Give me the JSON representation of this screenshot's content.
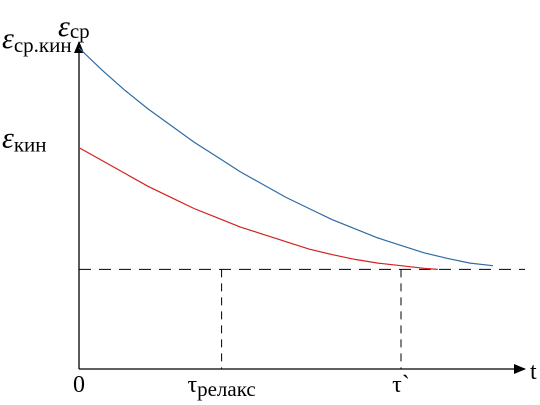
{
  "chart_data": {
    "type": "line",
    "title": "",
    "xlabel": "t",
    "ylabel": {
      "symbol": "ε",
      "subscript": "ср"
    },
    "xlim": [
      0,
      1.0
    ],
    "ylim": [
      0,
      1.0
    ],
    "x_ticks": [
      {
        "value": 0.0,
        "label": "0",
        "subscript": ""
      },
      {
        "value": 0.31,
        "label": "τ",
        "subscript": "релакс"
      },
      {
        "value": 0.7,
        "label": "τ`",
        "subscript": ""
      }
    ],
    "y_labels": [
      {
        "value": 0.87,
        "symbol": "ε",
        "subscript": "ср.кин"
      },
      {
        "value": 0.6,
        "symbol": "ε",
        "subscript": "кин"
      }
    ],
    "asymptote": {
      "y": 0.27,
      "style": "dashed"
    },
    "series": [
      {
        "color": "#2f6aa6",
        "x": [
          0.0,
          0.05,
          0.1,
          0.15,
          0.2,
          0.25,
          0.3,
          0.35,
          0.4,
          0.45,
          0.5,
          0.55,
          0.6,
          0.65,
          0.7,
          0.75,
          0.8,
          0.85,
          0.9
        ],
        "y": [
          0.87,
          0.81,
          0.755,
          0.705,
          0.66,
          0.615,
          0.575,
          0.535,
          0.5,
          0.465,
          0.435,
          0.405,
          0.38,
          0.355,
          0.335,
          0.315,
          0.3,
          0.287,
          0.28
        ]
      },
      {
        "color": "#d42020",
        "x": [
          0.0,
          0.05,
          0.1,
          0.15,
          0.2,
          0.25,
          0.3,
          0.35,
          0.4,
          0.45,
          0.5,
          0.55,
          0.6,
          0.65,
          0.7,
          0.75,
          0.78
        ],
        "y": [
          0.6,
          0.565,
          0.53,
          0.495,
          0.465,
          0.435,
          0.41,
          0.385,
          0.365,
          0.345,
          0.325,
          0.31,
          0.297,
          0.287,
          0.28,
          0.273,
          0.27
        ]
      }
    ]
  }
}
